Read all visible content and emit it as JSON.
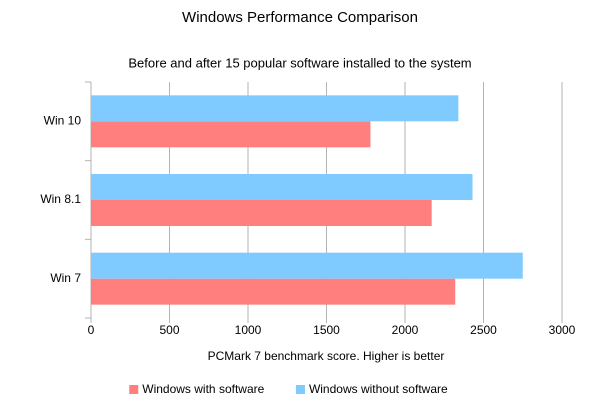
{
  "chart_data": {
    "type": "hbar",
    "title": "Windows Performance Comparison",
    "subtitle": "Before and after 15 popular software installed to the system",
    "x_label": "PCMark 7 benchmark score. Higher is better",
    "categories": [
      "Win 10",
      "Win 8.1",
      "Win 7"
    ],
    "series": [
      {
        "name": "Windows with software",
        "color": "#ff7f7f",
        "values": [
          1780,
          2170,
          2320
        ]
      },
      {
        "name": "Windows without software",
        "color": "#7fcaff",
        "values": [
          2340,
          2430,
          2750
        ]
      }
    ],
    "xlim": [
      0,
      3000
    ],
    "xticks": [
      0,
      500,
      1000,
      1500,
      2000,
      2500,
      3000
    ],
    "grid": true
  }
}
